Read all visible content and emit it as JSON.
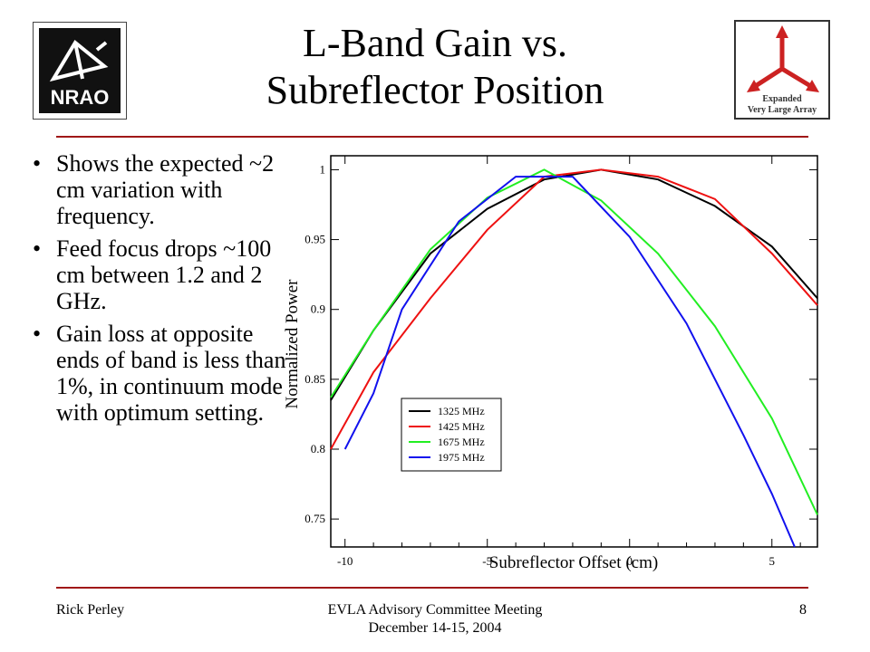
{
  "slide": {
    "title_line1": "L-Band Gain vs.",
    "title_line2": "Subreflector Position",
    "bullets": [
      "Shows the expected ~2 cm variation with frequency.",
      "Feed focus drops ~100 cm between 1.2 and 2 GHz.",
      "Gain loss at opposite ends of band is less than 1%, in continuum mode with optimum setting."
    ]
  },
  "logos": {
    "nrao_text": "NRAO",
    "evla_line1": "Expanded",
    "evla_line2": "Very Large Array",
    "evla_color": "#cc2222"
  },
  "footer": {
    "author": "Rick Perley",
    "meeting": "EVLA Advisory Committee Meeting",
    "date": "December 14-15, 2004",
    "page": "8"
  },
  "colors": {
    "rule": "#a01818"
  },
  "chart_data": {
    "type": "line",
    "title": "",
    "xlabel": "Subreflector Offset (cm)",
    "ylabel": "Normalized Power",
    "xlim": [
      -10.5,
      6.6
    ],
    "ylim": [
      0.73,
      1.01
    ],
    "xticks": [
      -10,
      -5,
      0,
      5
    ],
    "yticks": [
      0.75,
      0.8,
      0.85,
      0.9,
      0.95,
      1
    ],
    "ytick_labels": [
      "0.75",
      "0.8",
      "0.85",
      "0.9",
      "0.95",
      "1"
    ],
    "legend_position": "lower-left",
    "grid": false,
    "series": [
      {
        "name": "1325 MHz",
        "color": "#000000",
        "x": [
          -10.5,
          -9,
          -7,
          -5,
          -3,
          -1,
          1,
          3,
          5,
          6.6
        ],
        "y": [
          0.835,
          0.885,
          0.94,
          0.972,
          0.993,
          1.0,
          0.993,
          0.974,
          0.945,
          0.908
        ]
      },
      {
        "name": "1425 MHz",
        "color": "#ee1111",
        "x": [
          -10.5,
          -9,
          -7,
          -5,
          -3,
          -1,
          1,
          3,
          5,
          6.6
        ],
        "y": [
          0.8,
          0.855,
          0.908,
          0.957,
          0.995,
          1.0,
          0.995,
          0.979,
          0.94,
          0.903
        ]
      },
      {
        "name": "1675 MHz",
        "color": "#22ee22",
        "x": [
          -10.5,
          -9,
          -7,
          -5,
          -3,
          -1,
          1,
          3,
          5,
          6.6
        ],
        "y": [
          0.837,
          0.885,
          0.943,
          0.98,
          1.0,
          0.978,
          0.94,
          0.888,
          0.822,
          0.753
        ]
      },
      {
        "name": "1975 MHz",
        "color": "#1111ee",
        "x": [
          -10,
          -9,
          -8,
          -6,
          -4,
          -2,
          0,
          2,
          4,
          5,
          5.8
        ],
        "y": [
          0.8,
          0.84,
          0.9,
          0.963,
          0.995,
          0.995,
          0.952,
          0.89,
          0.81,
          0.768,
          0.73
        ]
      }
    ]
  }
}
